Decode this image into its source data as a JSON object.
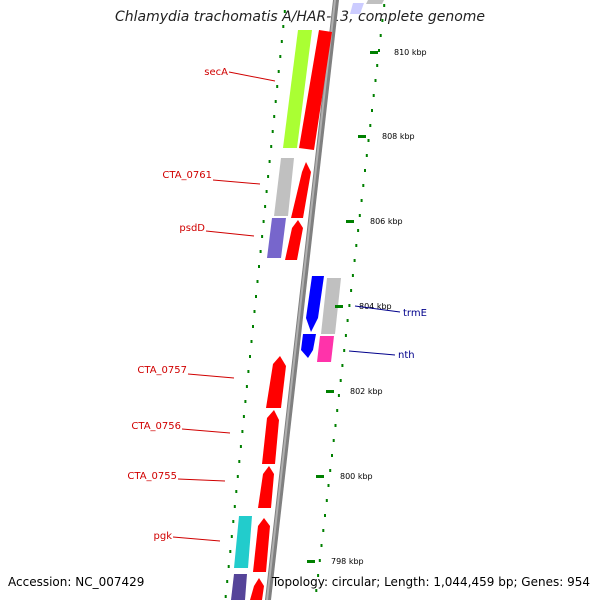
{
  "title": "Chlamydia trachomatis A/HAR-13, complete genome",
  "footer": {
    "accession": "Accession: NC_007429",
    "topology": "Topology: circular; Length: 1,044,459 bp; Genes: 954"
  },
  "colors": {
    "cds": "#ff0000",
    "reverse_cds": "#0000ff",
    "backbone": "#808080",
    "tick": "#008000",
    "left_label": "#d00000",
    "right_label": "#00008b",
    "lime": "#aaff33",
    "gray": "#c0c0c0",
    "purple": "#7766cc",
    "cyan": "#22cccc",
    "magenta": "#ff33aa",
    "lavender": "#ccccff",
    "darkpurple": "#554499"
  },
  "ticks": [
    {
      "label": "810 kbp"
    },
    {
      "label": "808 kbp"
    },
    {
      "label": "806 kbp"
    },
    {
      "label": "804 kbp"
    },
    {
      "label": "802 kbp"
    },
    {
      "label": "800 kbp"
    },
    {
      "label": "798 kbp"
    }
  ],
  "genes_left": [
    {
      "label": "secA"
    },
    {
      "label": "CTA_0761"
    },
    {
      "label": "psdD"
    },
    {
      "label": "CTA_0757"
    },
    {
      "label": "CTA_0756"
    },
    {
      "label": "CTA_0755"
    },
    {
      "label": "pgk"
    }
  ],
  "genes_right": [
    {
      "label": "trmE"
    },
    {
      "label": "nth"
    }
  ]
}
